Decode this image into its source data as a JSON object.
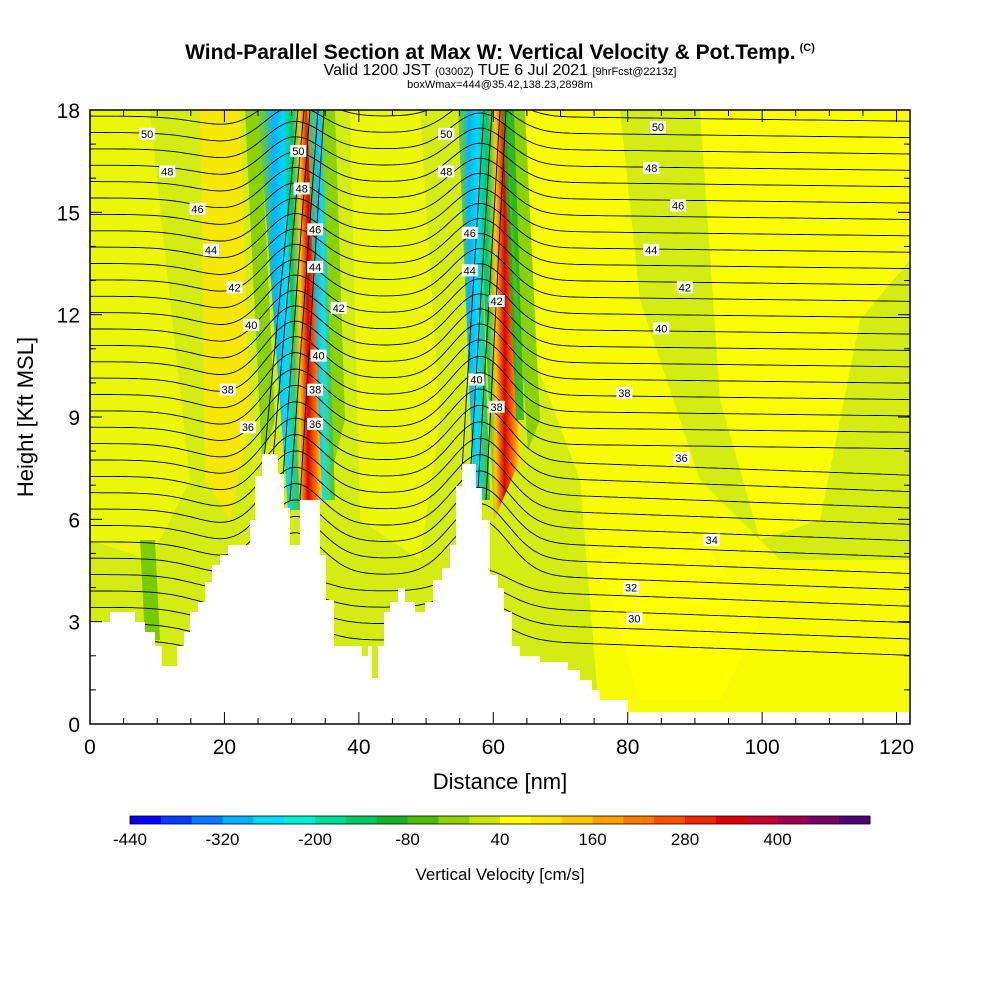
{
  "header": {
    "title": "Wind-Parallel Section at Max W: Vertical Velocity & Pot.Temp.",
    "copyright": "(C)",
    "valid_prefix": "Valid 1200 JST",
    "valid_utc": "(0300Z)",
    "valid_date": "TUE 6 Jul 2021",
    "forecast": "[9hrFcst@2213z]",
    "box_info": "boxWmax=444@35.42,138.23,2898m"
  },
  "chart_data": {
    "type": "heatmap",
    "xlabel": "Distance [nm]",
    "ylabel": "Height [Kft MSL]",
    "xlim": [
      0,
      122
    ],
    "ylim": [
      0,
      18
    ],
    "x_ticks": [
      0,
      20,
      40,
      60,
      80,
      100,
      120
    ],
    "y_ticks": [
      0,
      3,
      6,
      9,
      12,
      15,
      18
    ],
    "colorbar": {
      "title": "Vertical Velocity [cm/s]",
      "labels": [
        -440,
        -320,
        -200,
        -80,
        40,
        160,
        280,
        400
      ],
      "colors": [
        "#0000ff",
        "#0a3cff",
        "#0a78ff",
        "#00b4ff",
        "#00dcff",
        "#00f0d2",
        "#00dc96",
        "#00c864",
        "#14b428",
        "#50be00",
        "#8cd200",
        "#c8e600",
        "#ffff00",
        "#ffe600",
        "#ffc800",
        "#ffa000",
        "#ff7800",
        "#ff5000",
        "#f02800",
        "#dc0000",
        "#c80032",
        "#a00050",
        "#780064",
        "#500078"
      ]
    },
    "contour_labels": [
      {
        "text": "50",
        "x": 8.5,
        "y": 17.3
      },
      {
        "text": "48",
        "x": 11.5,
        "y": 16.2
      },
      {
        "text": "46",
        "x": 16,
        "y": 15.1
      },
      {
        "text": "44",
        "x": 18,
        "y": 13.9
      },
      {
        "text": "42",
        "x": 21.5,
        "y": 12.8
      },
      {
        "text": "40",
        "x": 24,
        "y": 11.7
      },
      {
        "text": "38",
        "x": 20.5,
        "y": 9.8
      },
      {
        "text": "36",
        "x": 23.5,
        "y": 8.7
      },
      {
        "text": "50",
        "x": 31,
        "y": 16.8
      },
      {
        "text": "48",
        "x": 31.5,
        "y": 15.7
      },
      {
        "text": "46",
        "x": 33.5,
        "y": 14.5
      },
      {
        "text": "44",
        "x": 33.5,
        "y": 13.4
      },
      {
        "text": "42",
        "x": 37,
        "y": 12.2
      },
      {
        "text": "40",
        "x": 34,
        "y": 10.8
      },
      {
        "text": "38",
        "x": 33.5,
        "y": 9.8
      },
      {
        "text": "36",
        "x": 33.5,
        "y": 8.8
      },
      {
        "text": "50",
        "x": 53,
        "y": 17.3
      },
      {
        "text": "48",
        "x": 53,
        "y": 16.2
      },
      {
        "text": "46",
        "x": 56.5,
        "y": 14.4
      },
      {
        "text": "44",
        "x": 56.5,
        "y": 13.3
      },
      {
        "text": "42",
        "x": 60.5,
        "y": 12.4
      },
      {
        "text": "40",
        "x": 57.5,
        "y": 10.1
      },
      {
        "text": "38",
        "x": 60.5,
        "y": 9.3
      },
      {
        "text": "50",
        "x": 84.5,
        "y": 17.5
      },
      {
        "text": "48",
        "x": 83.5,
        "y": 16.3
      },
      {
        "text": "46",
        "x": 87.5,
        "y": 15.2
      },
      {
        "text": "44",
        "x": 83.5,
        "y": 13.9
      },
      {
        "text": "42",
        "x": 88.5,
        "y": 12.8
      },
      {
        "text": "40",
        "x": 85,
        "y": 11.6
      },
      {
        "text": "38",
        "x": 79.5,
        "y": 9.7
      },
      {
        "text": "36",
        "x": 88,
        "y": 7.8
      },
      {
        "text": "34",
        "x": 92.5,
        "y": 5.4
      },
      {
        "text": "32",
        "x": 80.5,
        "y": 4.0
      },
      {
        "text": "30",
        "x": 81,
        "y": 3.1
      }
    ]
  }
}
